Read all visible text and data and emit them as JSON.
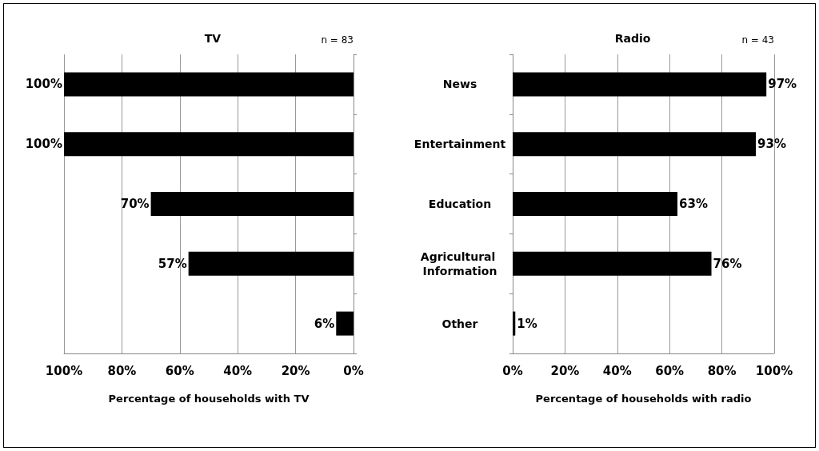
{
  "chart_data": [
    {
      "type": "bar",
      "orientation": "horizontal",
      "title": "TV",
      "xlabel": "Percentage of households with TV",
      "annotations": [
        "n = 83"
      ],
      "categories": [
        "News",
        "Entertainment",
        "Education",
        "Agricultural Information",
        "Other"
      ],
      "values": [
        100,
        100,
        70,
        57,
        6
      ],
      "value_labels": [
        "100%",
        "100%",
        "70%",
        "57%",
        "6%"
      ],
      "color": "#000000",
      "xlim": [
        100,
        0
      ],
      "xticks": [
        {
          "value": 100,
          "label": "100%"
        },
        {
          "value": 80,
          "label": "80%"
        },
        {
          "value": 60,
          "label": "60%"
        },
        {
          "value": 40,
          "label": "40%"
        },
        {
          "value": 20,
          "label": "20%"
        },
        {
          "value": 0,
          "label": "0%"
        }
      ],
      "grid": "x",
      "tick_labels": "x"
    },
    {
      "type": "bar",
      "orientation": "horizontal",
      "title": "Radio",
      "xlabel": "Percentage of households with radio",
      "annotations": [
        "n = 43"
      ],
      "categories": [
        "News",
        "Entertainment",
        "Education",
        "Agricultural Information",
        "Other"
      ],
      "values": [
        97,
        93,
        63,
        76,
        1
      ],
      "value_labels": [
        "97%",
        "93%",
        "63%",
        "76%",
        "1%"
      ],
      "color": "#000000",
      "xlim": [
        0,
        100
      ],
      "xticks": [
        {
          "value": 0,
          "label": "0%"
        },
        {
          "value": 20,
          "label": "20%"
        },
        {
          "value": 40,
          "label": "40%"
        },
        {
          "value": 60,
          "label": "60%"
        },
        {
          "value": 80,
          "label": "80%"
        },
        {
          "value": 100,
          "label": "100%"
        }
      ],
      "grid": "x"
    }
  ]
}
